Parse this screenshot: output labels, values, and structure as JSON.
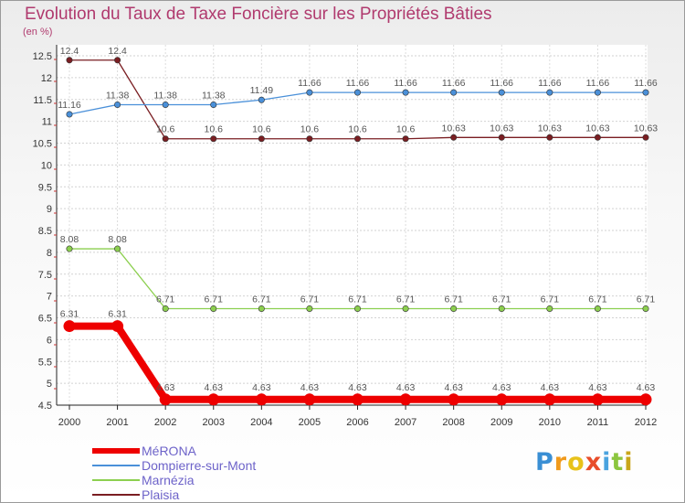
{
  "chart_data": {
    "type": "line",
    "title": "Evolution du Taux de Taxe Foncière sur les Propriétés Bâties",
    "ylabel": "(en %)",
    "xlabel": "",
    "x": [
      "2000",
      "2001",
      "2002",
      "2003",
      "2004",
      "2005",
      "2006",
      "2007",
      "2008",
      "2009",
      "2010",
      "2011",
      "2012"
    ],
    "ylim": [
      4.5,
      12.5
    ],
    "yticks": [
      "4.5",
      "5",
      "5.5",
      "6",
      "6.5",
      "7",
      "7.5",
      "8",
      "8.5",
      "9",
      "9.5",
      "10",
      "10.5",
      "11",
      "11.5",
      "12",
      "12.5"
    ],
    "series": [
      {
        "name": "MéRONA",
        "color": "#ee0000",
        "values": [
          6.31,
          6.31,
          4.63,
          4.63,
          4.63,
          4.63,
          4.63,
          4.63,
          4.63,
          4.63,
          4.63,
          4.63,
          4.63
        ],
        "labels": [
          "6.31",
          "6.31",
          "4.63",
          "4.63",
          "4.63",
          "4.63",
          "4.63",
          "4.63",
          "4.63",
          "4.63",
          "4.63",
          "4.63",
          "4.63"
        ]
      },
      {
        "name": "Dompierre-sur-Mont",
        "color": "#4a90d9",
        "values": [
          11.16,
          11.38,
          11.38,
          11.38,
          11.49,
          11.66,
          11.66,
          11.66,
          11.66,
          11.66,
          11.66,
          11.66,
          11.66
        ],
        "labels": [
          "11.16",
          "11.38",
          "11.38",
          "11.38",
          "11.49",
          "11.66",
          "11.66",
          "11.66",
          "11.66",
          "11.66",
          "11.66",
          "11.66",
          "11.66"
        ]
      },
      {
        "name": "Marnézia",
        "color": "#8ccf4f",
        "values": [
          8.08,
          8.08,
          6.71,
          6.71,
          6.71,
          6.71,
          6.71,
          6.71,
          6.71,
          6.71,
          6.71,
          6.71,
          6.71
        ],
        "labels": [
          "8.08",
          "8.08",
          "6.71",
          "6.71",
          "6.71",
          "6.71",
          "6.71",
          "6.71",
          "6.71",
          "6.71",
          "6.71",
          "6.71",
          "6.71"
        ]
      },
      {
        "name": "Plaisia",
        "color": "#7a1e22",
        "values": [
          12.4,
          12.4,
          10.6,
          10.6,
          10.6,
          10.6,
          10.6,
          10.6,
          10.63,
          10.63,
          10.63,
          10.63,
          10.63
        ],
        "labels": [
          "12.4",
          "12.4",
          "10.6",
          "10.6",
          "10.6",
          "10.6",
          "10.6",
          "10.6",
          "10.63",
          "10.63",
          "10.63",
          "10.63",
          "10.63"
        ]
      }
    ]
  },
  "brand": {
    "letters": [
      {
        "ch": "P",
        "color": "#3a8fd4"
      },
      {
        "ch": "r",
        "color": "#f09a1c"
      },
      {
        "ch": "o",
        "color": "#e8c21a"
      },
      {
        "ch": "x",
        "color": "#e84d2a"
      },
      {
        "ch": "i",
        "color": "#4aa3df"
      },
      {
        "ch": "t",
        "color": "#8cc63f"
      },
      {
        "ch": "i",
        "color": "#c9a61a"
      }
    ]
  }
}
